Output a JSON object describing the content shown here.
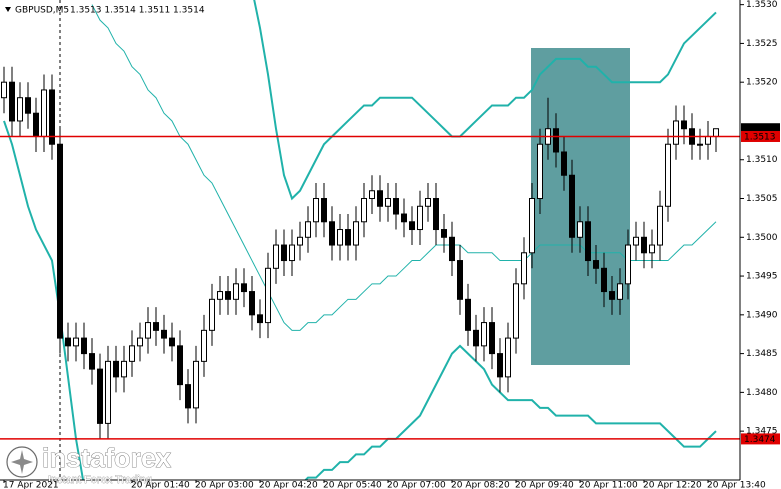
{
  "chart_data": {
    "type": "candlestick",
    "title": "GBPUSD,M5",
    "subtitle": "1.3513 1.3514 1.3511 1.3514",
    "categories": [
      "17 Apr 2021",
      null,
      null,
      null,
      null,
      null,
      null,
      null,
      null,
      null,
      null,
      null,
      null,
      null,
      null,
      null,
      "20 Apr 01:40",
      null,
      null,
      null,
      null,
      null,
      null,
      null,
      "20 Apr 03:00",
      null,
      null,
      null,
      null,
      null,
      null,
      null,
      "20 Apr 04:20",
      null,
      null,
      null,
      null,
      null,
      null,
      null,
      "20 Apr 05:40",
      null,
      null,
      null,
      null,
      null,
      null,
      null,
      "20 Apr 07:00",
      null,
      null,
      null,
      null,
      null,
      null,
      null,
      "20 Apr 08:20",
      null,
      null,
      null,
      null,
      null,
      null,
      null,
      "20 Apr 09:40",
      null,
      null,
      null,
      null,
      null,
      null,
      null,
      "20 Apr 11:00",
      null,
      null,
      null,
      null,
      null,
      null,
      null,
      "20 Apr 12:20",
      null,
      null,
      null,
      null,
      null,
      null,
      null,
      "20 Apr 13:40",
      null
    ],
    "open": [
      1.3518,
      1.352,
      1.3515,
      1.3518,
      1.3516,
      1.3513,
      1.3519,
      1.3512,
      1.3487,
      1.3486,
      1.3487,
      1.3485,
      1.3483,
      1.3476,
      1.3484,
      1.3482,
      1.3484,
      1.3486,
      1.3487,
      1.3489,
      1.3488,
      1.3487,
      1.3486,
      1.3481,
      1.3478,
      1.3484,
      1.3488,
      1.3492,
      1.3493,
      1.3492,
      1.3494,
      1.3493,
      1.349,
      1.3489,
      1.3496,
      1.3499,
      1.3497,
      1.3499,
      1.35,
      1.3502,
      1.3505,
      1.3502,
      1.3499,
      1.3501,
      1.3499,
      1.3502,
      1.3505,
      1.3506,
      1.3504,
      1.3505,
      1.3503,
      1.3502,
      1.3501,
      1.3504,
      1.3505,
      1.3501,
      1.35,
      1.3497,
      1.3492,
      1.3488,
      1.3486,
      1.3489,
      1.3485,
      1.3482,
      1.3487,
      1.3494,
      1.3498,
      1.3505,
      1.3512,
      1.3514,
      1.3511,
      1.3508,
      1.35,
      1.3502,
      1.3497,
      1.3496,
      1.3493,
      1.3492,
      1.3494,
      1.3499,
      1.35,
      1.3498,
      1.3499,
      1.3504,
      1.3512,
      1.3515,
      1.3514,
      1.3512,
      1.3512,
      1.3513
    ],
    "high": [
      1.3522,
      1.3522,
      1.352,
      1.352,
      1.3518,
      1.3521,
      1.3521,
      1.3514,
      1.3489,
      1.3489,
      1.3489,
      1.3487,
      1.3485,
      1.3486,
      1.3486,
      1.3486,
      1.3488,
      1.3489,
      1.3491,
      1.3491,
      1.349,
      1.3489,
      1.3488,
      1.3483,
      1.3486,
      1.349,
      1.3494,
      1.3495,
      1.3495,
      1.3496,
      1.3496,
      1.3495,
      1.3492,
      1.3498,
      1.3501,
      1.3501,
      1.3501,
      1.3502,
      1.3504,
      1.3507,
      1.3507,
      1.3504,
      1.3503,
      1.3503,
      1.3504,
      1.3507,
      1.3508,
      1.3508,
      1.3507,
      1.3507,
      1.3505,
      1.3504,
      1.3506,
      1.3507,
      1.3507,
      1.3503,
      1.3502,
      1.3499,
      1.3494,
      1.349,
      1.3491,
      1.3491,
      1.3487,
      1.3489,
      1.3496,
      1.35,
      1.3507,
      1.3514,
      1.3518,
      1.3516,
      1.3513,
      1.351,
      1.3504,
      1.3504,
      1.3499,
      1.3498,
      1.3495,
      1.3496,
      1.3501,
      1.3502,
      1.3502,
      1.3501,
      1.3506,
      1.3514,
      1.3517,
      1.3517,
      1.3516,
      1.3514,
      1.3515,
      1.3514
    ],
    "low": [
      1.3516,
      1.3513,
      1.3513,
      1.3514,
      1.3511,
      1.3511,
      1.351,
      1.3485,
      1.3484,
      1.3484,
      1.3483,
      1.3481,
      1.3474,
      1.3474,
      1.348,
      1.348,
      1.3482,
      1.3484,
      1.3485,
      1.3486,
      1.3485,
      1.3484,
      1.3479,
      1.3476,
      1.3476,
      1.3482,
      1.3486,
      1.349,
      1.349,
      1.349,
      1.3491,
      1.3488,
      1.3487,
      1.3487,
      1.3494,
      1.3495,
      1.3495,
      1.3497,
      1.3498,
      1.35,
      1.35,
      1.3497,
      1.3497,
      1.3497,
      1.3497,
      1.35,
      1.3503,
      1.3502,
      1.3502,
      1.3501,
      1.35,
      1.3499,
      1.3499,
      1.3502,
      1.3499,
      1.3498,
      1.3495,
      1.349,
      1.3486,
      1.3484,
      1.3484,
      1.3483,
      1.348,
      1.348,
      1.3485,
      1.3492,
      1.3496,
      1.3503,
      1.351,
      1.3509,
      1.3506,
      1.3498,
      1.3498,
      1.3495,
      1.3494,
      1.3491,
      1.349,
      1.349,
      1.3492,
      1.3497,
      1.3496,
      1.3496,
      1.3497,
      1.3502,
      1.351,
      1.3512,
      1.351,
      1.351,
      1.351,
      1.3511
    ],
    "close": [
      1.352,
      1.3515,
      1.3518,
      1.3516,
      1.3513,
      1.3519,
      1.3512,
      1.3487,
      1.3486,
      1.3487,
      1.3485,
      1.3483,
      1.3476,
      1.3484,
      1.3482,
      1.3484,
      1.3486,
      1.3487,
      1.3489,
      1.3488,
      1.3487,
      1.3486,
      1.3481,
      1.3478,
      1.3484,
      1.3488,
      1.3492,
      1.3493,
      1.3492,
      1.3494,
      1.3493,
      1.349,
      1.3489,
      1.3496,
      1.3499,
      1.3497,
      1.3499,
      1.35,
      1.3502,
      1.3505,
      1.3502,
      1.3499,
      1.3501,
      1.3499,
      1.3502,
      1.3505,
      1.3506,
      1.3504,
      1.3505,
      1.3503,
      1.3502,
      1.3501,
      1.3504,
      1.3505,
      1.3501,
      1.35,
      1.3497,
      1.3492,
      1.3488,
      1.3486,
      1.3489,
      1.3485,
      1.3482,
      1.3487,
      1.3494,
      1.3498,
      1.3505,
      1.3512,
      1.3514,
      1.3511,
      1.3508,
      1.35,
      1.3502,
      1.3497,
      1.3496,
      1.3493,
      1.3492,
      1.3494,
      1.3499,
      1.35,
      1.3498,
      1.3499,
      1.3504,
      1.3512,
      1.3515,
      1.3514,
      1.3512,
      1.3512,
      1.3513,
      1.3514
    ],
    "bands": [
      {
        "color": "#20b2aa",
        "width": 2,
        "values": [
          null,
          null,
          null,
          null,
          null,
          null,
          null,
          null,
          null,
          null,
          null,
          null,
          null,
          null,
          null,
          null,
          null,
          null,
          null,
          null,
          null,
          null,
          null,
          null,
          null,
          null,
          null,
          null,
          null,
          null,
          null,
          1.3532,
          1.3527,
          1.3521,
          1.3514,
          1.3508,
          1.3505,
          1.3506,
          1.3508,
          1.351,
          1.3512,
          1.3513,
          1.3514,
          1.3515,
          1.3516,
          1.3517,
          1.3517,
          1.3518,
          1.3518,
          1.3518,
          1.3518,
          1.3518,
          1.3517,
          1.3516,
          1.3515,
          1.3514,
          1.3513,
          1.3513,
          1.3514,
          1.3515,
          1.3516,
          1.3517,
          1.3517,
          1.3517,
          1.3518,
          1.3518,
          1.3519,
          1.3521,
          1.3522,
          1.3523,
          1.3523,
          1.3523,
          1.3523,
          1.3522,
          1.3522,
          1.3521,
          1.352,
          1.352,
          1.352,
          1.352,
          1.352,
          1.352,
          1.352,
          1.3521,
          1.3523,
          1.3525,
          1.3526,
          1.3527,
          1.3528,
          1.3529
        ]
      },
      {
        "color": "#20b2aa",
        "width": 1,
        "values": [
          null,
          null,
          null,
          null,
          null,
          null,
          null,
          null,
          null,
          null,
          null,
          1.353,
          1.3528,
          1.3527,
          1.3525,
          1.3524,
          1.3522,
          1.3521,
          1.3519,
          1.3518,
          1.3516,
          1.3515,
          1.3513,
          1.3512,
          1.351,
          1.3508,
          1.3507,
          1.3505,
          1.3503,
          1.3501,
          1.3499,
          1.3497,
          1.3495,
          1.3493,
          1.3491,
          1.3489,
          1.3488,
          1.3488,
          1.3489,
          1.3489,
          1.349,
          1.349,
          1.3491,
          1.3492,
          1.3492,
          1.3493,
          1.3494,
          1.3494,
          1.3495,
          1.3495,
          1.3496,
          1.3497,
          1.3497,
          1.3498,
          1.3499,
          1.3499,
          1.3499,
          1.3499,
          1.3498,
          1.3498,
          1.3498,
          1.3498,
          1.3497,
          1.3497,
          1.3497,
          1.3497,
          1.3498,
          1.3499,
          1.3499,
          1.3499,
          1.3499,
          1.3499,
          1.3499,
          1.3498,
          1.3498,
          1.3498,
          1.3498,
          1.3498,
          1.3497,
          1.3497,
          1.3497,
          1.3497,
          1.3497,
          1.3497,
          1.3498,
          1.3499,
          1.3499,
          1.35,
          1.3501,
          1.3502
        ]
      },
      {
        "color": "#20b2aa",
        "width": 2,
        "values": [
          1.3515,
          1.3512,
          1.3508,
          1.3504,
          1.3501,
          1.3499,
          1.3497,
          1.349,
          1.3482,
          1.3474,
          1.3468,
          null,
          null,
          null,
          null,
          null,
          null,
          null,
          null,
          null,
          null,
          null,
          null,
          null,
          null,
          null,
          null,
          null,
          null,
          null,
          null,
          null,
          null,
          null,
          null,
          null,
          1.3467,
          1.3468,
          1.3469,
          1.3469,
          1.347,
          1.347,
          1.3471,
          1.3471,
          1.3472,
          1.3472,
          1.3473,
          1.3473,
          1.3474,
          1.3474,
          1.3475,
          1.3476,
          1.3477,
          1.3479,
          1.3481,
          1.3483,
          1.3485,
          1.3486,
          1.3485,
          1.3484,
          1.3483,
          1.3481,
          1.348,
          1.3479,
          1.3479,
          1.3479,
          1.3479,
          1.3478,
          1.3478,
          1.3477,
          1.3477,
          1.3477,
          1.3477,
          1.3477,
          1.3476,
          1.3476,
          1.3476,
          1.3476,
          1.3476,
          1.3476,
          1.3476,
          1.3476,
          1.3476,
          1.3475,
          1.3474,
          1.3473,
          1.3473,
          1.3473,
          1.3474,
          1.3475
        ]
      }
    ],
    "hlines": [
      {
        "value": 1.3513,
        "label": "1.3513",
        "color": "#e00000"
      },
      {
        "value": 1.3474,
        "label": "1.3474",
        "color": "#e00000"
      }
    ],
    "last_price": {
      "value": 1.3514,
      "label": "1.3514",
      "color": "#000000"
    },
    "ylim": [
      1.34687,
      1.35306
    ],
    "yticks": [
      {
        "value": 1.353,
        "label": "1.3530"
      },
      1.3525,
      {
        "value": 1.352,
        "label": "1.3520"
      },
      {
        "value": 1.351,
        "label": "1.3510"
      },
      1.3505,
      {
        "value": 1.35,
        "label": "1.3500"
      },
      1.3495,
      {
        "value": 1.349,
        "label": "1.3490"
      },
      1.3485,
      {
        "value": 1.348,
        "label": "1.3480"
      },
      1.3475
    ],
    "grid": false,
    "watermark": {
      "name": "instaforex",
      "tagline": "Instant Forex Trading"
    }
  }
}
